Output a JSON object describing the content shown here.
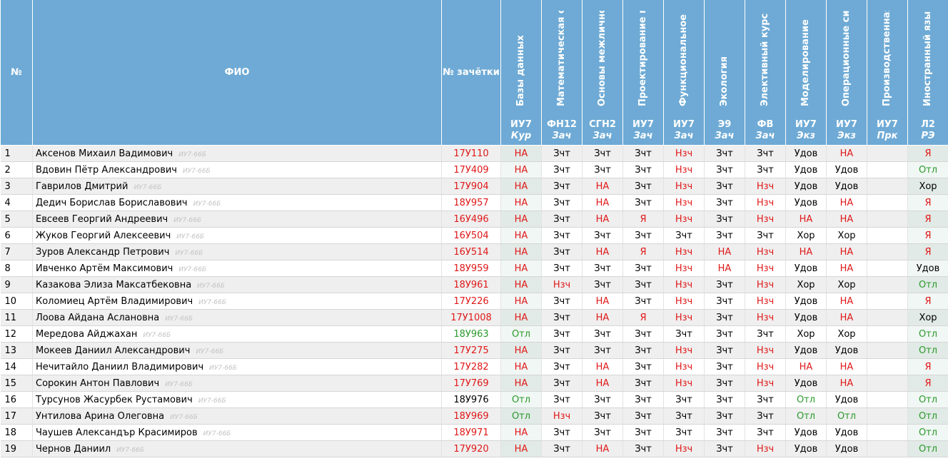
{
  "header": {
    "num": "№",
    "fio": "ФИО",
    "zach": "№ зачётки"
  },
  "subjects": [
    {
      "name": "Базы данных",
      "code": "ИУ7",
      "type": "Кур"
    },
    {
      "name": "Математическая стат",
      "code": "ФН12",
      "type": "Зач"
    },
    {
      "name": "Основы межличностн",
      "code": "СГН2",
      "type": "Зач"
    },
    {
      "name": "Проектирование прог",
      "code": "ИУ7",
      "type": "Зач"
    },
    {
      "name": "Функциональное и лс",
      "code": "ИУ7",
      "type": "Зач"
    },
    {
      "name": "Экология",
      "code": "Э9",
      "type": "Зач"
    },
    {
      "name": "Элективный курс по с",
      "code": "ФВ",
      "type": "Зач"
    },
    {
      "name": "Моделирование",
      "code": "ИУ7",
      "type": "Экз"
    },
    {
      "name": "Операционные систе",
      "code": "ИУ7",
      "type": "Экз"
    },
    {
      "name": "Производственная пр",
      "code": "ИУ7",
      "type": "Прк"
    },
    {
      "name": "Иностранный язык",
      "code": "Л2",
      "type": "РЭ"
    }
  ],
  "rows": [
    {
      "num": "1",
      "name": "Аксенов Михаил Вадимович",
      "group": "ИУ7-66Б",
      "zach": "17У110",
      "zach_status": "bad",
      "grades": [
        "НА",
        "Зчт",
        "Зчт",
        "Зчт",
        "Нзч",
        "Зчт",
        "Зчт",
        "Удов",
        "НА",
        "",
        "Я"
      ]
    },
    {
      "num": "2",
      "name": "Вдовин Пётр Александрович",
      "group": "ИУ7-66Б",
      "zach": "17У409",
      "zach_status": "bad",
      "grades": [
        "НА",
        "Зчт",
        "Зчт",
        "Зчт",
        "Нзч",
        "Зчт",
        "Зчт",
        "Удов",
        "Удов",
        "",
        "Отл"
      ]
    },
    {
      "num": "3",
      "name": "Гаврилов Дмитрий",
      "group": "ИУ7-66Б",
      "zach": "17У904",
      "zach_status": "bad",
      "grades": [
        "НА",
        "Зчт",
        "НА",
        "Зчт",
        "Нзч",
        "Зчт",
        "Нзч",
        "Удов",
        "Удов",
        "",
        "Хор"
      ]
    },
    {
      "num": "4",
      "name": "Дедич Борислав Бориславович",
      "group": "ИУ7-66Б",
      "zach": "18У957",
      "zach_status": "bad",
      "grades": [
        "НА",
        "Зчт",
        "НА",
        "Зчт",
        "Нзч",
        "Зчт",
        "Нзч",
        "Удов",
        "НА",
        "",
        "Я"
      ]
    },
    {
      "num": "5",
      "name": "Евсеев Георгий Андреевич",
      "group": "ИУ7-66Б",
      "zach": "16У496",
      "zach_status": "bad",
      "grades": [
        "НА",
        "Зчт",
        "НА",
        "Я",
        "Нзч",
        "Зчт",
        "Нзч",
        "НА",
        "НА",
        "",
        "Я"
      ]
    },
    {
      "num": "6",
      "name": "Жуков Георгий Алексеевич",
      "group": "ИУ7-66Б",
      "zach": "16У504",
      "zach_status": "bad",
      "grades": [
        "НА",
        "Зчт",
        "Зчт",
        "Зчт",
        "Зчт",
        "Зчт",
        "Зчт",
        "Хор",
        "Хор",
        "",
        "Я"
      ]
    },
    {
      "num": "7",
      "name": "Зуров Александр Петрович",
      "group": "ИУ7-66Б",
      "zach": "16У514",
      "zach_status": "bad",
      "grades": [
        "НА",
        "Зчт",
        "НА",
        "Я",
        "Нзч",
        "НА",
        "Нзч",
        "НА",
        "НА",
        "",
        "Я"
      ]
    },
    {
      "num": "8",
      "name": "Ивченко Артём Максимович",
      "group": "ИУ7-66Б",
      "zach": "18У959",
      "zach_status": "bad",
      "grades": [
        "НА",
        "Зчт",
        "Зчт",
        "Зчт",
        "Нзч",
        "НА",
        "Нзч",
        "Удов",
        "НА",
        "",
        "Удов"
      ]
    },
    {
      "num": "9",
      "name": "Казакова Элиза Максатбековна",
      "group": "ИУ7-66Б",
      "zach": "18У961",
      "zach_status": "bad",
      "grades": [
        "НА",
        "Нзч",
        "Зчт",
        "Зчт",
        "Нзч",
        "Зчт",
        "Нзч",
        "Хор",
        "Хор",
        "",
        "Отл"
      ]
    },
    {
      "num": "10",
      "name": "Коломиец Артём Владимирович",
      "group": "ИУ7-66Б",
      "zach": "17У226",
      "zach_status": "bad",
      "grades": [
        "НА",
        "Зчт",
        "НА",
        "Зчт",
        "Нзч",
        "Зчт",
        "Нзч",
        "Удов",
        "НА",
        "",
        "Я"
      ]
    },
    {
      "num": "11",
      "name": "Лоова Айдана Аслановна",
      "group": "ИУ7-66Б",
      "zach": "17У1008",
      "zach_status": "bad",
      "grades": [
        "НА",
        "Зчт",
        "НА",
        "Я",
        "Нзч",
        "Зчт",
        "Нзч",
        "Удов",
        "НА",
        "",
        "Хор"
      ]
    },
    {
      "num": "12",
      "name": "Мередова Айджахан",
      "group": "ИУ7-66Б",
      "zach": "18У963",
      "zach_status": "ok",
      "grades": [
        "Отл",
        "Зчт",
        "Зчт",
        "Зчт",
        "Зчт",
        "Зчт",
        "Зчт",
        "Хор",
        "Хор",
        "",
        "Отл"
      ]
    },
    {
      "num": "13",
      "name": "Мокеев Даниил Александрович",
      "group": "ИУ7-66Б",
      "zach": "17У275",
      "zach_status": "bad",
      "grades": [
        "НА",
        "Зчт",
        "Зчт",
        "Зчт",
        "Нзч",
        "Зчт",
        "Нзч",
        "Удов",
        "Удов",
        "",
        "Отл"
      ]
    },
    {
      "num": "14",
      "name": "Нечитайло Даниил Владимирович",
      "group": "ИУ7-66Б",
      "zach": "17У282",
      "zach_status": "bad",
      "grades": [
        "НА",
        "Зчт",
        "НА",
        "Зчт",
        "Нзч",
        "Зчт",
        "Нзч",
        "НА",
        "НА",
        "",
        "Я"
      ]
    },
    {
      "num": "15",
      "name": "Сорокин Антон Павлович",
      "group": "ИУ7-66Б",
      "zach": "17У769",
      "zach_status": "bad",
      "grades": [
        "НА",
        "Зчт",
        "НА",
        "Зчт",
        "Нзч",
        "Зчт",
        "Нзч",
        "Удов",
        "НА",
        "",
        "Я"
      ]
    },
    {
      "num": "16",
      "name": "Турсунов Жасурбек Рустамович",
      "group": "ИУ7-66Б",
      "zach": "18У976",
      "zach_status": "norm",
      "grades": [
        "Отл",
        "Зчт",
        "Зчт",
        "Зчт",
        "Зчт",
        "Зчт",
        "Зчт",
        "Отл",
        "Удов",
        "",
        "Отл"
      ]
    },
    {
      "num": "17",
      "name": "Унтилова Арина Олеговна",
      "group": "ИУ7-66Б",
      "zach": "18У969",
      "zach_status": "bad",
      "grades": [
        "Отл",
        "Нзч",
        "Зчт",
        "Зчт",
        "Зчт",
        "Зчт",
        "Зчт",
        "Отл",
        "Отл",
        "",
        "Отл"
      ]
    },
    {
      "num": "18",
      "name": "Чаушев Александър Красимиров",
      "group": "ИУ7-66Б",
      "zach": "18У971",
      "zach_status": "bad",
      "grades": [
        "НА",
        "Зчт",
        "Зчт",
        "Зчт",
        "Зчт",
        "Зчт",
        "Зчт",
        "Удов",
        "Удов",
        "",
        "Отл"
      ]
    },
    {
      "num": "19",
      "name": "Чернов Даниил",
      "group": "ИУ7-66Б",
      "zach": "17У920",
      "zach_status": "bad",
      "grades": [
        "НА",
        "Зчт",
        "НА",
        "Зчт",
        "Нзч",
        "Зчт",
        "Нзч",
        "Удов",
        "Удов",
        "",
        "Отл"
      ]
    }
  ],
  "colors": {
    "header_bg": "#6eaad5",
    "fail": "#e01818",
    "excellent": "#2b9a2b",
    "stripe": "#efefef"
  }
}
